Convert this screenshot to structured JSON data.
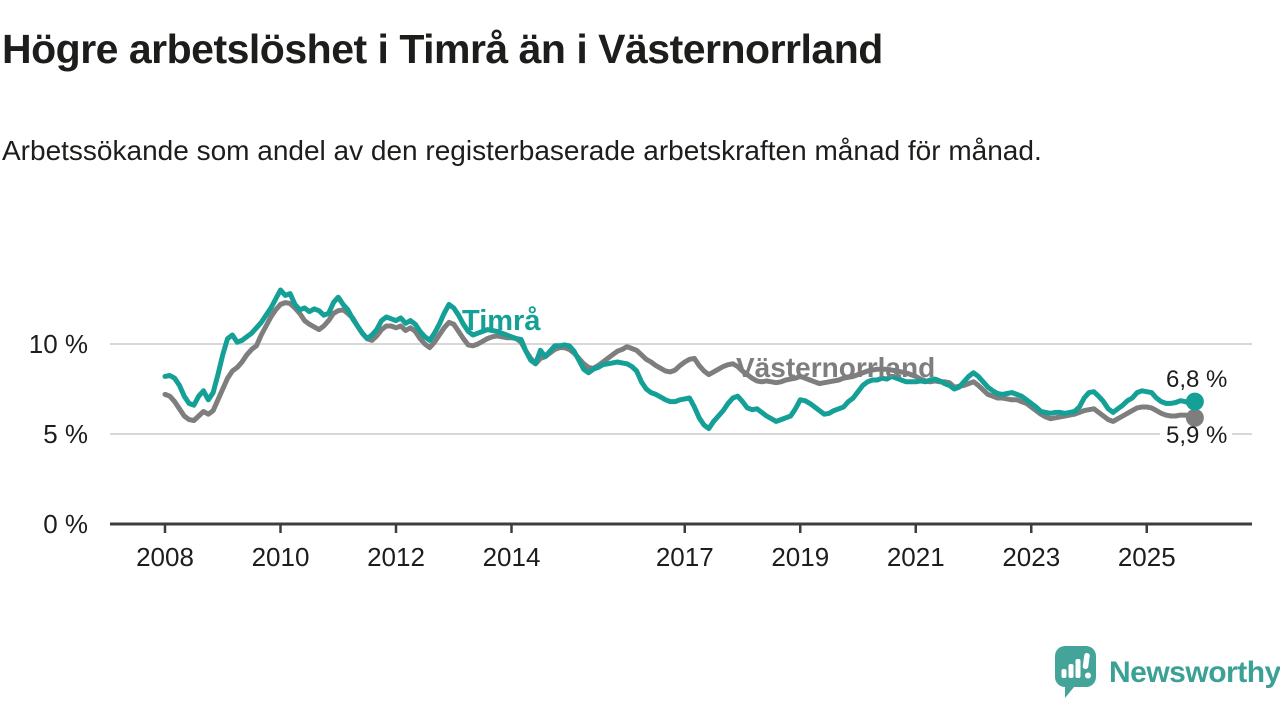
{
  "header": {
    "title": "Högre arbetslöshet i Timrå än i Västernorrland",
    "subtitle": "Arbetssökande som andel av den registerbaserade arbetskraften månad för månad."
  },
  "colors": {
    "timra_line": "#14a096",
    "vasternorrland_line": "#7e7e7e",
    "grid": "#d8d8d8",
    "axis": "#3d3d3d",
    "text": "#1d1d1b",
    "logo": "#3ba096",
    "background": "#ffffff"
  },
  "chart_data": {
    "type": "line",
    "title": "Högre arbetslöshet i Timrå än i Västernorrland",
    "subtitle": "Arbetssökande som andel av den registerbaserade arbetskraften månad för månad.",
    "unit": "%",
    "x_start_year": 2008,
    "x_step_months": 1,
    "x_end_label_period": "2025 (November)",
    "x_tick_years": [
      2008,
      2010,
      2012,
      2014,
      2017,
      2019,
      2021,
      2023,
      2025
    ],
    "y_ticks": [
      {
        "value": 0,
        "label": "0 %"
      },
      {
        "value": 5,
        "label": "5 %"
      },
      {
        "value": 10,
        "label": "10 %"
      }
    ],
    "ylim": [
      0,
      14.1
    ],
    "grid": "horizontal",
    "legend_position": "inline-labels",
    "series": [
      {
        "name": "Västernorrland",
        "color": "#7e7e7e",
        "end_label": "5,9 %",
        "end_value": 5.9,
        "values": [
          7.2,
          7.1,
          6.8,
          6.4,
          6.0,
          5.8,
          5.75,
          6.0,
          6.25,
          6.1,
          6.3,
          6.9,
          7.5,
          8.1,
          8.5,
          8.7,
          9.0,
          9.4,
          9.7,
          9.9,
          10.5,
          11.0,
          11.5,
          11.9,
          12.2,
          12.3,
          12.25,
          12.0,
          11.7,
          11.3,
          11.1,
          10.95,
          10.8,
          11.0,
          11.3,
          11.7,
          11.85,
          11.9,
          11.7,
          11.45,
          11.0,
          10.6,
          10.3,
          10.2,
          10.45,
          10.8,
          11.0,
          11.0,
          10.9,
          11.0,
          10.75,
          10.9,
          10.7,
          10.3,
          10.0,
          9.8,
          10.1,
          10.5,
          10.9,
          11.2,
          11.1,
          10.7,
          10.3,
          9.95,
          9.9,
          10.0,
          10.15,
          10.3,
          10.4,
          10.45,
          10.4,
          10.35,
          10.35,
          10.3,
          10.1,
          9.6,
          9.2,
          8.9,
          9.2,
          9.3,
          9.5,
          9.7,
          9.8,
          9.8,
          9.7,
          9.5,
          9.2,
          8.9,
          8.7,
          8.65,
          8.8,
          9.0,
          9.2,
          9.4,
          9.6,
          9.7,
          9.85,
          9.75,
          9.65,
          9.4,
          9.15,
          9.0,
          8.8,
          8.65,
          8.5,
          8.45,
          8.55,
          8.8,
          9.0,
          9.15,
          9.2,
          8.8,
          8.5,
          8.3,
          8.45,
          8.6,
          8.75,
          8.85,
          8.9,
          8.75,
          8.5,
          8.3,
          8.1,
          7.95,
          7.9,
          7.95,
          7.9,
          7.85,
          7.9,
          8.0,
          8.05,
          8.1,
          8.2,
          8.1,
          8.0,
          7.9,
          7.8,
          7.85,
          7.9,
          7.95,
          8.0,
          8.1,
          8.15,
          8.2,
          8.3,
          8.4,
          8.5,
          8.55,
          8.6,
          8.6,
          8.6,
          8.55,
          8.5,
          8.45,
          8.4,
          8.3,
          8.2,
          8.05,
          7.95,
          7.9,
          7.95,
          7.9,
          7.9,
          7.85,
          7.6,
          7.65,
          7.7,
          7.8,
          7.9,
          7.7,
          7.45,
          7.2,
          7.1,
          7.0,
          7.0,
          6.95,
          6.9,
          6.9,
          6.8,
          6.7,
          6.5,
          6.3,
          6.1,
          5.95,
          5.85,
          5.9,
          5.95,
          6.0,
          6.05,
          6.1,
          6.2,
          6.3,
          6.35,
          6.4,
          6.2,
          6.0,
          5.8,
          5.7,
          5.85,
          6.0,
          6.15,
          6.3,
          6.45,
          6.5,
          6.5,
          6.45,
          6.3,
          6.15,
          6.05,
          6.0,
          6.0,
          6.05,
          6.05,
          6.0,
          5.9
        ]
      },
      {
        "name": "Timrå",
        "color": "#14a096",
        "end_label": "6,8 %",
        "end_value": 6.8,
        "values": [
          8.2,
          8.25,
          8.1,
          7.7,
          7.1,
          6.7,
          6.6,
          7.1,
          7.4,
          6.9,
          7.3,
          8.3,
          9.4,
          10.3,
          10.5,
          10.1,
          10.2,
          10.4,
          10.6,
          10.9,
          11.2,
          11.6,
          12.0,
          12.5,
          13.0,
          12.7,
          12.8,
          12.2,
          11.9,
          12.0,
          11.8,
          11.95,
          11.85,
          11.6,
          11.7,
          12.3,
          12.6,
          12.2,
          11.9,
          11.4,
          11.0,
          10.6,
          10.3,
          10.5,
          10.8,
          11.3,
          11.5,
          11.4,
          11.3,
          11.45,
          11.15,
          11.3,
          11.1,
          10.7,
          10.4,
          10.2,
          10.6,
          11.1,
          11.7,
          12.2,
          12.0,
          11.6,
          11.1,
          10.7,
          10.5,
          10.6,
          10.7,
          10.8,
          10.75,
          10.7,
          10.6,
          10.5,
          10.4,
          10.3,
          10.25,
          9.6,
          9.1,
          8.9,
          9.65,
          9.3,
          9.6,
          9.9,
          9.9,
          9.95,
          9.9,
          9.6,
          9.1,
          8.6,
          8.4,
          8.6,
          8.7,
          8.85,
          8.9,
          8.95,
          9.0,
          8.95,
          8.9,
          8.75,
          8.5,
          7.9,
          7.5,
          7.3,
          7.2,
          7.05,
          6.9,
          6.8,
          6.8,
          6.9,
          6.95,
          7.0,
          6.5,
          5.9,
          5.5,
          5.3,
          5.7,
          6.0,
          6.3,
          6.7,
          7.0,
          7.1,
          6.8,
          6.45,
          6.35,
          6.4,
          6.2,
          6.0,
          5.85,
          5.7,
          5.8,
          5.9,
          6.0,
          6.4,
          6.9,
          6.85,
          6.7,
          6.5,
          6.3,
          6.1,
          6.15,
          6.3,
          6.4,
          6.5,
          6.8,
          7.0,
          7.35,
          7.7,
          7.9,
          8.0,
          8.0,
          8.1,
          8.05,
          8.2,
          8.1,
          8.0,
          7.9,
          7.9,
          7.9,
          7.95,
          7.9,
          8.0,
          8.05,
          7.95,
          7.8,
          7.7,
          7.5,
          7.6,
          7.9,
          8.2,
          8.4,
          8.2,
          7.9,
          7.6,
          7.4,
          7.25,
          7.2,
          7.25,
          7.3,
          7.2,
          7.1,
          6.9,
          6.7,
          6.5,
          6.25,
          6.2,
          6.15,
          6.2,
          6.2,
          6.15,
          6.2,
          6.25,
          6.5,
          7.0,
          7.3,
          7.35,
          7.1,
          6.8,
          6.4,
          6.2,
          6.4,
          6.6,
          6.85,
          7.0,
          7.3,
          7.4,
          7.35,
          7.3,
          7.0,
          6.8,
          6.7,
          6.7,
          6.75,
          6.85,
          6.8,
          6.7,
          6.8
        ]
      }
    ]
  },
  "annotations": {
    "timra_inline_label": "Timrå",
    "vasternorrland_inline_label": "Västernorrland",
    "timra_end_value_label": "6,8 %",
    "vasternorrland_end_value_label": "5,9 %"
  },
  "footer": {
    "brand": "Newsworthy"
  }
}
